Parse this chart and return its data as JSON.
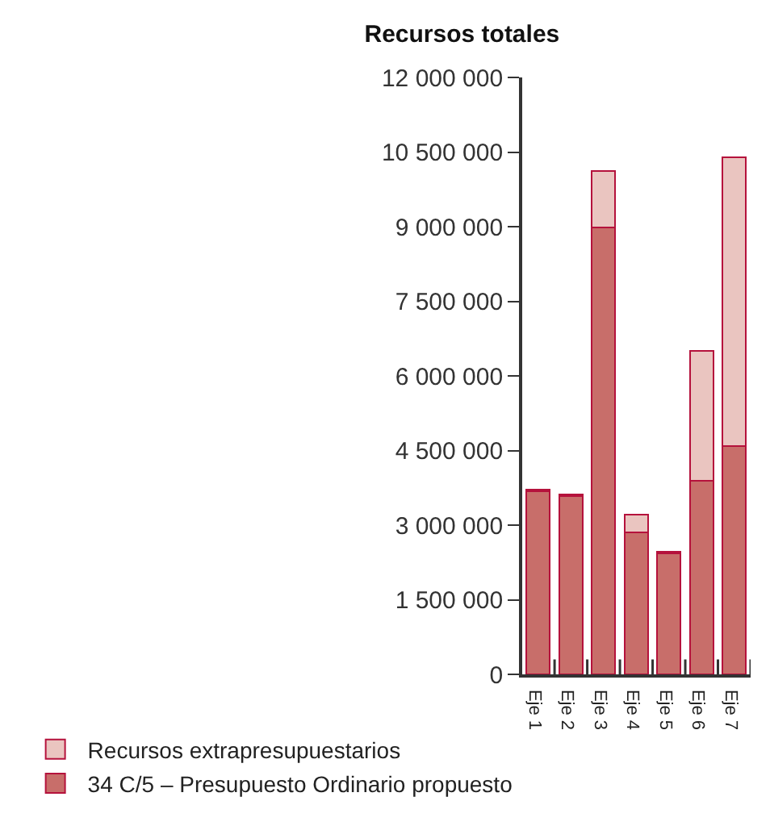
{
  "chart_data": {
    "type": "bar",
    "title": "Recursos totales",
    "stacked": true,
    "categories": [
      "Eje 1",
      "Eje 2",
      "Eje 3",
      "Eje 4",
      "Eje 5",
      "Eje 6",
      "Eje 7"
    ],
    "series": [
      {
        "name": "34 C/5 – Presupuesto Ordinario propuesto",
        "color": "#c86e6a",
        "values": [
          3680000,
          3580000,
          8980000,
          2860000,
          2440000,
          3890000,
          4590000
        ]
      },
      {
        "name": "Recursos extrapresupuestarios",
        "color": "#eac5c0",
        "values": [
          40000,
          40000,
          1140000,
          350000,
          30000,
          2610000,
          5810000
        ]
      }
    ],
    "ylim": [
      0,
      12000000
    ],
    "yticks": [
      {
        "value": 0,
        "label": "0"
      },
      {
        "value": 1500000,
        "label": "1 500 000"
      },
      {
        "value": 3000000,
        "label": "3 000 000"
      },
      {
        "value": 4500000,
        "label": "4 500 000"
      },
      {
        "value": 6000000,
        "label": "6 000 000"
      },
      {
        "value": 7500000,
        "label": "7 500 000"
      },
      {
        "value": 9000000,
        "label": "9 000 000"
      },
      {
        "value": 10500000,
        "label": "10 500 000"
      },
      {
        "value": 12000000,
        "label": "12 000 000"
      }
    ],
    "grid": false,
    "legend": "bottom"
  }
}
